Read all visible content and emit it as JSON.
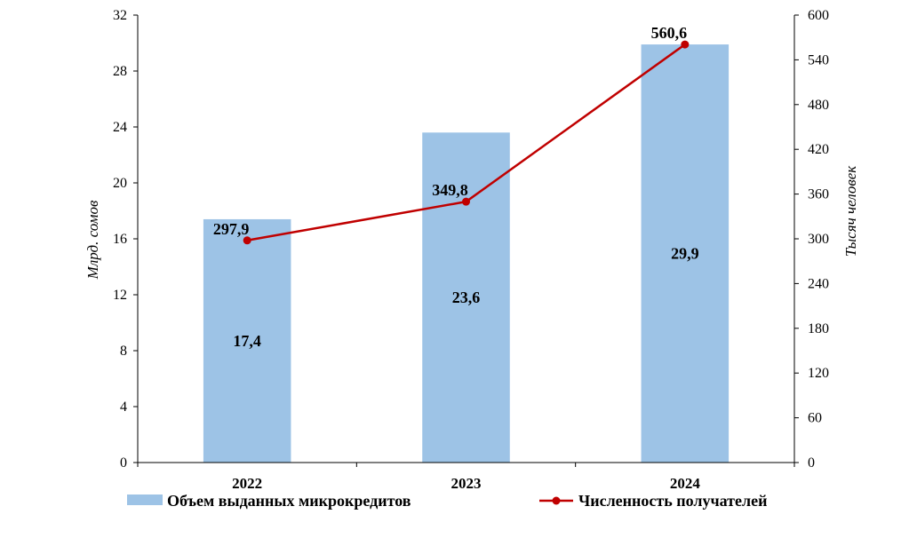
{
  "chart_data": {
    "type": "bar+line",
    "categories": [
      "2022",
      "2023",
      "2024"
    ],
    "series": [
      {
        "name": "Объем выданных микрокредитов",
        "type": "bar",
        "axis": "left",
        "values": [
          17.4,
          23.6,
          29.9
        ],
        "labels": [
          "17,4",
          "23,6",
          "29,9"
        ],
        "color": "#9dc3e6"
      },
      {
        "name": "Численность получателей",
        "type": "line",
        "axis": "right",
        "values": [
          297.9,
          349.8,
          560.6
        ],
        "labels": [
          "297,9",
          "349,8",
          "560,6"
        ],
        "color": "#c00000"
      }
    ],
    "ylabel_left": "Млрд. сомов",
    "ylabel_right": "Тысяч человек",
    "ylim_left": [
      0,
      32
    ],
    "yticks_left": [
      "0",
      "4",
      "8",
      "12",
      "16",
      "20",
      "24",
      "28",
      "32"
    ],
    "ylim_right": [
      0,
      600
    ],
    "yticks_right": [
      "0",
      "60",
      "120",
      "180",
      "240",
      "300",
      "360",
      "420",
      "480",
      "540",
      "600"
    ],
    "grid": false,
    "legend_position": "bottom"
  }
}
